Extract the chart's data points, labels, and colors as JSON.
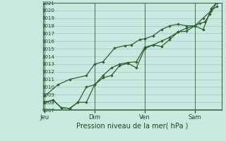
{
  "xlabel": "Pression niveau de la mer( hPa )",
  "background_color": "#c8e8e0",
  "plot_bg_color": "#c8e8e0",
  "grid_color": "#a0c8c0",
  "line_color": "#2d6030",
  "vline_color": "#4a7a6a",
  "ylim": [
    1007,
    1021
  ],
  "yticks": [
    1007,
    1008,
    1009,
    1010,
    1011,
    1012,
    1013,
    1014,
    1015,
    1016,
    1017,
    1018,
    1019,
    1020,
    1021
  ],
  "xtick_labels": [
    "Jeu",
    "Dim",
    "Ven",
    "Sam"
  ],
  "xtick_positions": [
    0.0,
    3.0,
    6.0,
    9.0
  ],
  "xlim": [
    -0.1,
    10.6
  ],
  "vline_positions": [
    0.0,
    3.0,
    6.0,
    9.0
  ],
  "line1_x": [
    0.0,
    0.5,
    1.0,
    1.5,
    2.0,
    2.5,
    3.0,
    3.5,
    4.0,
    4.5,
    5.0,
    5.5,
    6.0,
    6.5,
    7.0,
    7.5,
    8.0,
    8.5,
    9.0,
    9.5,
    10.0,
    10.3
  ],
  "line1_y": [
    1008.0,
    1008.3,
    1007.3,
    1007.2,
    1008.0,
    1008.0,
    1010.3,
    1011.2,
    1011.5,
    1012.8,
    1013.1,
    1012.5,
    1015.0,
    1015.5,
    1015.3,
    1016.2,
    1017.2,
    1017.3,
    1018.0,
    1017.5,
    1020.3,
    1021.0
  ],
  "line2_x": [
    0.0,
    0.8,
    1.5,
    2.5,
    3.0,
    3.5,
    4.2,
    4.8,
    5.2,
    5.7,
    6.0,
    6.5,
    7.0,
    7.5,
    8.0,
    8.5,
    9.0,
    9.5,
    10.0,
    10.3
  ],
  "line2_y": [
    1008.8,
    1010.3,
    1011.0,
    1011.5,
    1013.0,
    1013.3,
    1015.1,
    1015.4,
    1015.5,
    1016.2,
    1016.3,
    1016.7,
    1017.5,
    1018.0,
    1018.2,
    1018.0,
    1018.0,
    1019.0,
    1020.0,
    1020.5
  ],
  "line3_x": [
    0.0,
    0.5,
    1.0,
    1.5,
    2.0,
    2.5,
    3.0,
    3.5,
    4.0,
    4.5,
    5.0,
    5.5,
    6.0,
    6.5,
    7.0,
    7.5,
    8.0,
    8.5,
    9.0,
    9.3,
    9.6,
    9.9,
    10.3
  ],
  "line3_y": [
    1008.0,
    1008.3,
    1007.3,
    1007.2,
    1008.0,
    1010.0,
    1010.3,
    1011.5,
    1012.5,
    1013.0,
    1013.2,
    1013.3,
    1015.2,
    1015.5,
    1016.0,
    1016.5,
    1017.2,
    1017.7,
    1018.0,
    1018.3,
    1018.5,
    1019.5,
    1021.0
  ]
}
